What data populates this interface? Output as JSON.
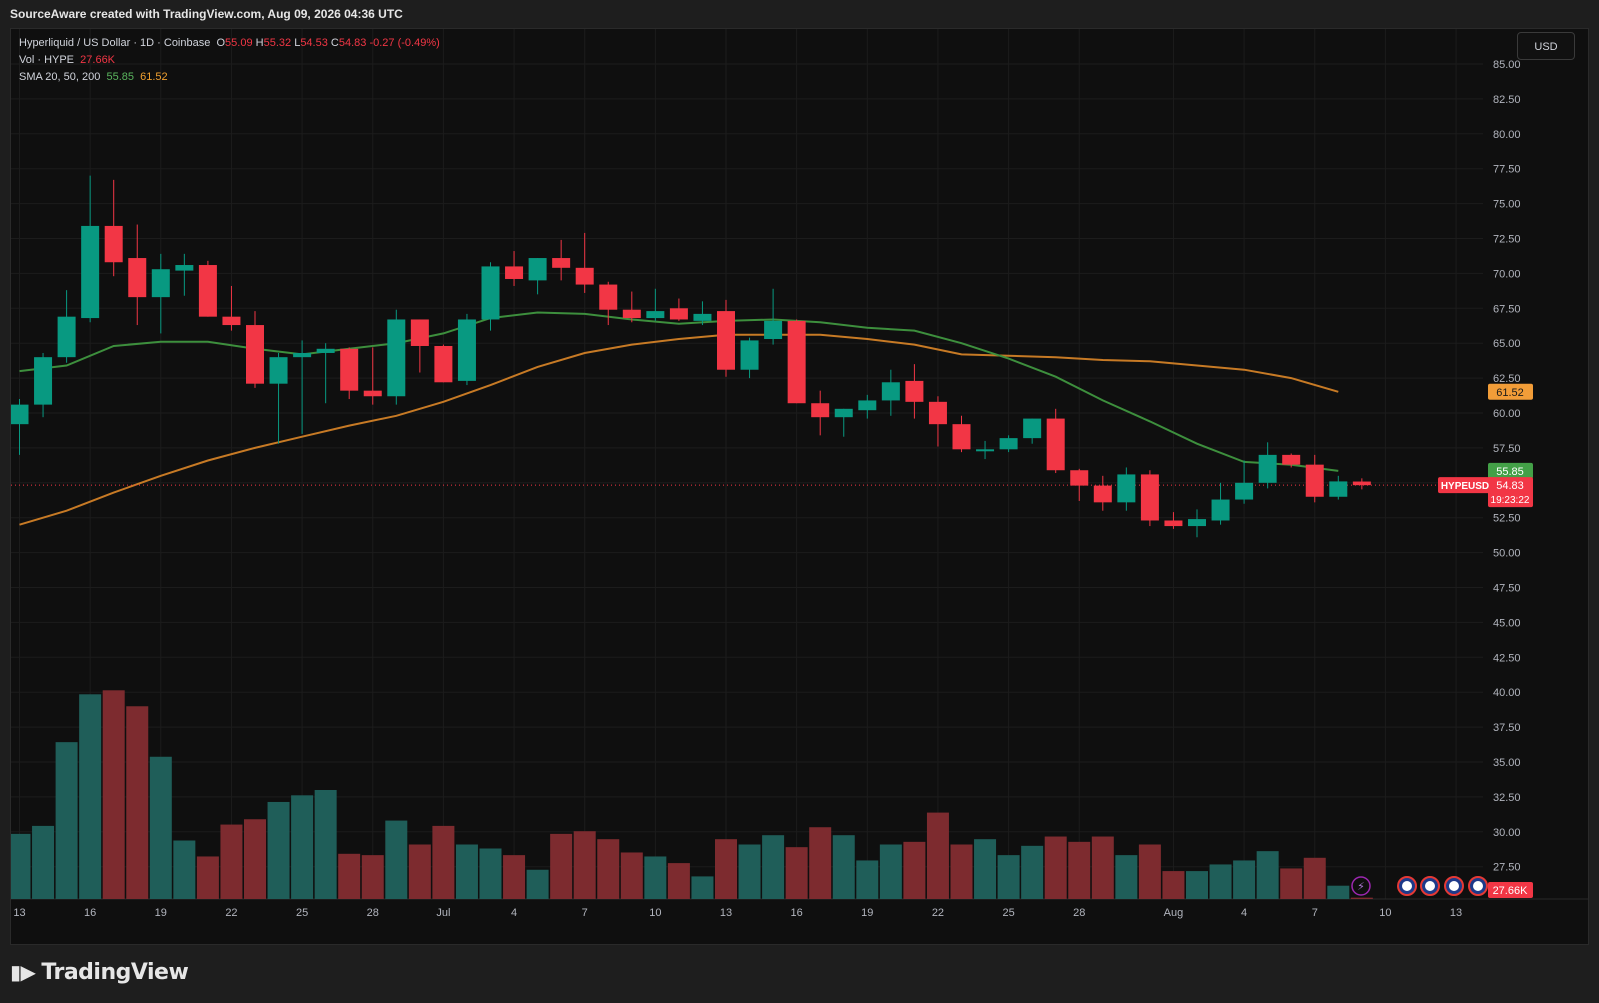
{
  "header": {
    "credit": "SourceAware created with TradingView.com, Aug 09, 2026 04:36 UTC"
  },
  "legend": {
    "symbol": "Hyperliquid / US Dollar · 1D · Coinbase",
    "o_label": "O",
    "o": "55.09",
    "h_label": "H",
    "h": "55.32",
    "l_label": "L",
    "l": "54.53",
    "c_label": "C",
    "c": "54.83",
    "change": "-0.27 (-0.49%)",
    "vol_label": "Vol · HYPE",
    "vol": "27.66K",
    "sma_label": "SMA 20, 50, 200",
    "sma1": "55.85",
    "sma2": "61.52"
  },
  "currency_button": "USD",
  "badges": {
    "sma50": "61.52",
    "sma20": "55.85",
    "ticker": "HYPEUSD",
    "price": "54.83",
    "countdown": "19:23:22",
    "volume": "27.66K"
  },
  "footer": {
    "brand": "TradingView"
  },
  "colors": {
    "bg": "#0f0f0f",
    "up": "#089981",
    "down": "#f23645",
    "vol_up": "#1f5e59",
    "vol_down": "#7d2b2f",
    "sma20": "#3d8f3d",
    "sma50": "#c77a25",
    "grid": "#1c1c1c"
  },
  "chart_data": {
    "type": "candlestick",
    "title": "Hyperliquid / US Dollar · 1D · Coinbase",
    "y_ticks": [
      "85.00",
      "82.50",
      "80.00",
      "77.50",
      "75.00",
      "72.50",
      "70.00",
      "67.50",
      "65.00",
      "62.50",
      "60.00",
      "57.50",
      "55.00",
      "52.50",
      "50.00",
      "47.50",
      "45.00",
      "42.50",
      "40.00",
      "37.50",
      "35.00",
      "32.50",
      "30.00",
      "27.50"
    ],
    "ylim": [
      27.5,
      86.5
    ],
    "x_ticks": [
      {
        "label": "13",
        "i": 0
      },
      {
        "label": "16",
        "i": 3
      },
      {
        "label": "19",
        "i": 6
      },
      {
        "label": "22",
        "i": 9
      },
      {
        "label": "25",
        "i": 12
      },
      {
        "label": "28",
        "i": 15
      },
      {
        "label": "Jul",
        "i": 18
      },
      {
        "label": "4",
        "i": 21
      },
      {
        "label": "7",
        "i": 24
      },
      {
        "label": "10",
        "i": 27
      },
      {
        "label": "13",
        "i": 30
      },
      {
        "label": "16",
        "i": 33
      },
      {
        "label": "19",
        "i": 36
      },
      {
        "label": "22",
        "i": 39
      },
      {
        "label": "25",
        "i": 42
      },
      {
        "label": "28",
        "i": 45
      },
      {
        "label": "Aug",
        "i": 49
      },
      {
        "label": "4",
        "i": 52
      },
      {
        "label": "7",
        "i": 55
      },
      {
        "label": "10",
        "i": 58
      },
      {
        "label": "13",
        "i": 61
      }
    ],
    "candles": [
      {
        "o": 59.2,
        "h": 61.0,
        "l": 57.0,
        "c": 60.6
      },
      {
        "o": 60.6,
        "h": 64.3,
        "l": 59.7,
        "c": 64.0
      },
      {
        "o": 64.0,
        "h": 68.8,
        "l": 63.6,
        "c": 66.9
      },
      {
        "o": 66.8,
        "h": 77.0,
        "l": 66.5,
        "c": 73.4
      },
      {
        "o": 73.4,
        "h": 76.7,
        "l": 69.8,
        "c": 70.8
      },
      {
        "o": 71.1,
        "h": 73.5,
        "l": 66.3,
        "c": 68.3
      },
      {
        "o": 68.3,
        "h": 71.4,
        "l": 65.7,
        "c": 70.3
      },
      {
        "o": 70.2,
        "h": 71.4,
        "l": 68.4,
        "c": 70.6
      },
      {
        "o": 70.6,
        "h": 70.9,
        "l": 66.9,
        "c": 66.9
      },
      {
        "o": 66.9,
        "h": 69.1,
        "l": 65.9,
        "c": 66.3
      },
      {
        "o": 66.3,
        "h": 67.3,
        "l": 61.8,
        "c": 62.1
      },
      {
        "o": 62.1,
        "h": 64.3,
        "l": 57.8,
        "c": 64.0
      },
      {
        "o": 64.0,
        "h": 65.2,
        "l": 58.5,
        "c": 64.3
      },
      {
        "o": 64.3,
        "h": 65.0,
        "l": 60.7,
        "c": 64.6
      },
      {
        "o": 64.6,
        "h": 64.7,
        "l": 61.0,
        "c": 61.6
      },
      {
        "o": 61.6,
        "h": 64.7,
        "l": 60.6,
        "c": 61.2
      },
      {
        "o": 61.2,
        "h": 67.4,
        "l": 60.6,
        "c": 66.7
      },
      {
        "o": 66.7,
        "h": 66.7,
        "l": 62.9,
        "c": 64.8
      },
      {
        "o": 64.8,
        "h": 64.9,
        "l": 62.2,
        "c": 62.2
      },
      {
        "o": 62.3,
        "h": 67.1,
        "l": 62.0,
        "c": 66.7
      },
      {
        "o": 66.7,
        "h": 70.8,
        "l": 65.9,
        "c": 70.5
      },
      {
        "o": 70.5,
        "h": 71.6,
        "l": 69.1,
        "c": 69.6
      },
      {
        "o": 69.5,
        "h": 71.1,
        "l": 68.5,
        "c": 71.1
      },
      {
        "o": 71.1,
        "h": 72.4,
        "l": 69.5,
        "c": 70.4
      },
      {
        "o": 70.4,
        "h": 72.9,
        "l": 68.6,
        "c": 69.2
      },
      {
        "o": 69.2,
        "h": 69.4,
        "l": 66.3,
        "c": 67.4
      },
      {
        "o": 67.4,
        "h": 68.7,
        "l": 66.5,
        "c": 66.8
      },
      {
        "o": 66.8,
        "h": 68.9,
        "l": 66.6,
        "c": 67.3
      },
      {
        "o": 67.5,
        "h": 68.2,
        "l": 66.6,
        "c": 66.7
      },
      {
        "o": 66.6,
        "h": 68.0,
        "l": 66.3,
        "c": 67.1
      },
      {
        "o": 67.3,
        "h": 68.1,
        "l": 62.6,
        "c": 63.1
      },
      {
        "o": 63.1,
        "h": 65.4,
        "l": 62.5,
        "c": 65.2
      },
      {
        "o": 65.3,
        "h": 68.9,
        "l": 64.9,
        "c": 66.6
      },
      {
        "o": 66.6,
        "h": 66.7,
        "l": 60.7,
        "c": 60.7
      },
      {
        "o": 60.7,
        "h": 61.6,
        "l": 58.4,
        "c": 59.7
      },
      {
        "o": 59.7,
        "h": 60.3,
        "l": 58.3,
        "c": 60.3
      },
      {
        "o": 60.2,
        "h": 61.3,
        "l": 59.6,
        "c": 60.9
      },
      {
        "o": 60.9,
        "h": 63.1,
        "l": 59.8,
        "c": 62.2
      },
      {
        "o": 62.3,
        "h": 63.5,
        "l": 59.6,
        "c": 60.8
      },
      {
        "o": 60.8,
        "h": 61.2,
        "l": 57.6,
        "c": 59.2
      },
      {
        "o": 59.2,
        "h": 59.8,
        "l": 57.2,
        "c": 57.4
      },
      {
        "o": 57.4,
        "h": 58.0,
        "l": 56.7,
        "c": 57.4
      },
      {
        "o": 57.4,
        "h": 58.4,
        "l": 57.2,
        "c": 58.2
      },
      {
        "o": 58.2,
        "h": 59.6,
        "l": 57.8,
        "c": 59.6
      },
      {
        "o": 59.6,
        "h": 60.3,
        "l": 55.7,
        "c": 55.9
      },
      {
        "o": 55.9,
        "h": 56.0,
        "l": 53.7,
        "c": 54.8
      },
      {
        "o": 54.8,
        "h": 55.5,
        "l": 53.0,
        "c": 53.6
      },
      {
        "o": 53.6,
        "h": 56.1,
        "l": 53.0,
        "c": 55.6
      },
      {
        "o": 55.6,
        "h": 55.9,
        "l": 51.9,
        "c": 52.3
      },
      {
        "o": 52.3,
        "h": 52.9,
        "l": 51.7,
        "c": 51.9
      },
      {
        "o": 51.9,
        "h": 53.1,
        "l": 51.1,
        "c": 52.4
      },
      {
        "o": 52.3,
        "h": 55.0,
        "l": 52.0,
        "c": 53.8
      },
      {
        "o": 53.8,
        "h": 56.6,
        "l": 53.5,
        "c": 55.0
      },
      {
        "o": 55.0,
        "h": 57.9,
        "l": 54.6,
        "c": 57.0
      },
      {
        "o": 57.0,
        "h": 57.1,
        "l": 56.1,
        "c": 56.3
      },
      {
        "o": 56.3,
        "h": 57.0,
        "l": 53.6,
        "c": 54.0
      },
      {
        "o": 54.0,
        "h": 55.5,
        "l": 53.8,
        "c": 55.1
      },
      {
        "o": 55.09,
        "h": 55.32,
        "l": 54.53,
        "c": 54.83
      }
    ],
    "volume_axis": {
      "min": 27.5,
      "max": 41.5
    },
    "volumes": [
      30.0,
      30.6,
      36.9,
      40.5,
      40.8,
      39.6,
      35.8,
      29.5,
      28.3,
      30.7,
      31.1,
      32.4,
      32.9,
      33.3,
      28.5,
      28.4,
      31.0,
      29.2,
      30.6,
      29.2,
      28.9,
      28.4,
      27.3,
      30.0,
      30.2,
      29.6,
      28.6,
      28.3,
      27.8,
      26.8,
      29.6,
      29.2,
      29.9,
      29.0,
      30.5,
      29.9,
      28.0,
      29.2,
      29.4,
      31.6,
      29.2,
      29.6,
      28.4,
      29.1,
      29.8,
      29.4,
      29.8,
      28.4,
      29.2,
      27.2,
      27.2,
      27.7,
      28.0,
      28.7,
      27.4,
      28.2,
      26.1,
      25.2
    ],
    "sma20": [
      {
        "i": 0,
        "v": 63.0
      },
      {
        "i": 2,
        "v": 63.4
      },
      {
        "i": 4,
        "v": 64.8
      },
      {
        "i": 6,
        "v": 65.1
      },
      {
        "i": 8,
        "v": 65.1
      },
      {
        "i": 10,
        "v": 64.6
      },
      {
        "i": 12,
        "v": 64.2
      },
      {
        "i": 14,
        "v": 64.6
      },
      {
        "i": 16,
        "v": 65.0
      },
      {
        "i": 18,
        "v": 65.7
      },
      {
        "i": 20,
        "v": 66.8
      },
      {
        "i": 22,
        "v": 67.2
      },
      {
        "i": 24,
        "v": 67.1
      },
      {
        "i": 26,
        "v": 66.7
      },
      {
        "i": 28,
        "v": 66.4
      },
      {
        "i": 30,
        "v": 66.6
      },
      {
        "i": 32,
        "v": 66.7
      },
      {
        "i": 34,
        "v": 66.5
      },
      {
        "i": 36,
        "v": 66.1
      },
      {
        "i": 38,
        "v": 65.9
      },
      {
        "i": 40,
        "v": 65.0
      },
      {
        "i": 42,
        "v": 63.9
      },
      {
        "i": 44,
        "v": 62.6
      },
      {
        "i": 46,
        "v": 60.9
      },
      {
        "i": 48,
        "v": 59.4
      },
      {
        "i": 50,
        "v": 57.8
      },
      {
        "i": 52,
        "v": 56.5
      },
      {
        "i": 54,
        "v": 56.3
      },
      {
        "i": 56,
        "v": 55.85
      }
    ],
    "sma50": [
      {
        "i": 0,
        "v": 52.0
      },
      {
        "i": 2,
        "v": 53.0
      },
      {
        "i": 4,
        "v": 54.3
      },
      {
        "i": 6,
        "v": 55.5
      },
      {
        "i": 8,
        "v": 56.6
      },
      {
        "i": 10,
        "v": 57.5
      },
      {
        "i": 12,
        "v": 58.3
      },
      {
        "i": 14,
        "v": 59.1
      },
      {
        "i": 16,
        "v": 59.8
      },
      {
        "i": 18,
        "v": 60.8
      },
      {
        "i": 20,
        "v": 62.0
      },
      {
        "i": 22,
        "v": 63.3
      },
      {
        "i": 24,
        "v": 64.3
      },
      {
        "i": 26,
        "v": 64.9
      },
      {
        "i": 28,
        "v": 65.3
      },
      {
        "i": 30,
        "v": 65.6
      },
      {
        "i": 32,
        "v": 65.6
      },
      {
        "i": 34,
        "v": 65.6
      },
      {
        "i": 36,
        "v": 65.3
      },
      {
        "i": 38,
        "v": 64.9
      },
      {
        "i": 40,
        "v": 64.2
      },
      {
        "i": 42,
        "v": 64.1
      },
      {
        "i": 44,
        "v": 64.0
      },
      {
        "i": 46,
        "v": 63.8
      },
      {
        "i": 48,
        "v": 63.7
      },
      {
        "i": 50,
        "v": 63.4
      },
      {
        "i": 52,
        "v": 63.1
      },
      {
        "i": 54,
        "v": 62.5
      },
      {
        "i": 56,
        "v": 61.52
      }
    ],
    "last_price": 54.83
  }
}
